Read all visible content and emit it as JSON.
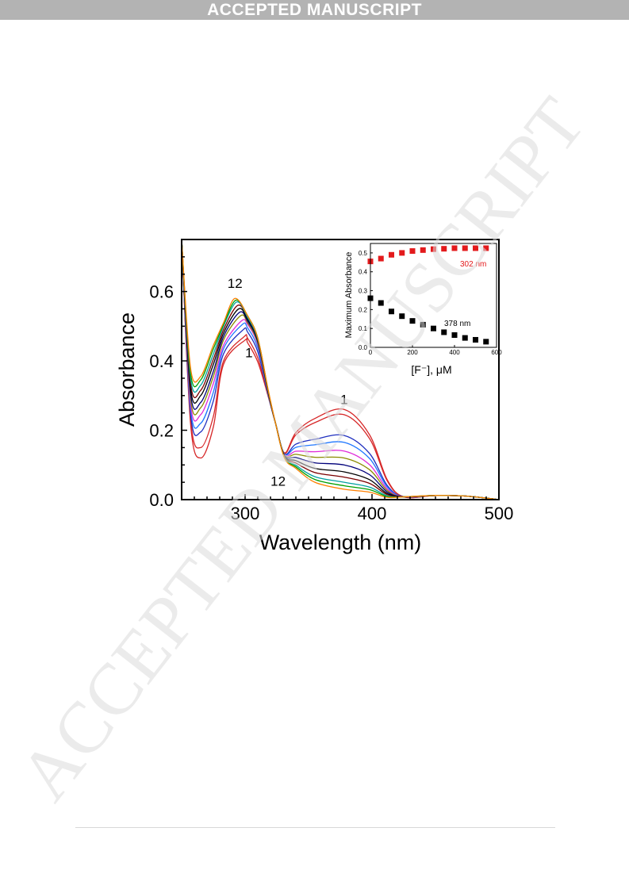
{
  "banner": {
    "text": "ACCEPTED MANUSCRIPT"
  },
  "watermark": {
    "text": "ACCEPTED MANUSCRIPT",
    "color": "#dcdcdc"
  },
  "chart_data": [
    {
      "type": "line",
      "xlabel": "Wavelength (nm)",
      "ylabel": "Absorbance",
      "xlim": [
        250,
        500
      ],
      "ylim": [
        0,
        0.75
      ],
      "xticks": [
        300,
        400,
        500
      ],
      "yticks": [
        0.0,
        0.2,
        0.4,
        0.6
      ],
      "annotations": [
        {
          "text": "12",
          "x": 292,
          "y": 0.61
        },
        {
          "text": "1",
          "x": 303,
          "y": 0.41
        },
        {
          "text": "1",
          "x": 378,
          "y": 0.275
        },
        {
          "text": "12",
          "x": 326,
          "y": 0.04
        }
      ],
      "series": [
        {
          "color": "#d62728",
          "peak300": 0.46,
          "peak378": 0.26,
          "min265": 0.12,
          "x302": 0.452
        },
        {
          "color": "#d62728",
          "peak300": 0.47,
          "peak378": 0.245,
          "min265": 0.15,
          "x302": 0.465
        },
        {
          "color": "#1f2fbf",
          "peak300": 0.49,
          "peak378": 0.185,
          "min265": 0.195,
          "x302": 0.483
        },
        {
          "color": "#1f77ff",
          "peak300": 0.505,
          "peak378": 0.165,
          "min265": 0.22,
          "x302": 0.495
        },
        {
          "color": "#e02ad8",
          "peak300": 0.515,
          "peak378": 0.14,
          "min265": 0.245,
          "x302": 0.505
        },
        {
          "color": "#8b8b00",
          "peak300": 0.53,
          "peak378": 0.12,
          "min265": 0.265,
          "x302": 0.51
        },
        {
          "color": "#00007a",
          "peak300": 0.54,
          "peak378": 0.1,
          "min265": 0.28,
          "x302": 0.515
        },
        {
          "color": "#000000",
          "peak300": 0.55,
          "peak378": 0.08,
          "min265": 0.3,
          "x302": 0.52
        },
        {
          "color": "#7a0000",
          "peak300": 0.56,
          "peak378": 0.065,
          "min265": 0.315,
          "x302": 0.525
        },
        {
          "color": "#00a0a0",
          "peak300": 0.57,
          "peak378": 0.05,
          "min265": 0.33,
          "x302": 0.525
        },
        {
          "color": "#00a000",
          "peak300": 0.575,
          "peak378": 0.04,
          "min265": 0.345,
          "x302": 0.53
        },
        {
          "color": "#ff7f00",
          "peak300": 0.58,
          "peak378": 0.03,
          "min265": 0.355,
          "x302": 0.53
        }
      ]
    },
    {
      "type": "scatter",
      "xlabel": "[F⁻], μM",
      "ylabel": "Maximum Absorbance",
      "xlim": [
        0,
        600
      ],
      "ylim": [
        0,
        0.55
      ],
      "xticks": [
        0,
        200,
        400,
        600
      ],
      "yticks": [
        0.0,
        0.1,
        0.2,
        0.3,
        0.4,
        0.5
      ],
      "series": [
        {
          "name": "302 nm",
          "color": "#e31a1c",
          "x": [
            0,
            50,
            100,
            150,
            200,
            250,
            300,
            350,
            400,
            450,
            500,
            550
          ],
          "y": [
            0.455,
            0.47,
            0.49,
            0.5,
            0.51,
            0.515,
            0.52,
            0.522,
            0.525,
            0.525,
            0.525,
            0.525
          ]
        },
        {
          "name": "378 nm",
          "color": "#000000",
          "x": [
            0,
            50,
            100,
            150,
            200,
            250,
            300,
            350,
            400,
            450,
            500,
            550
          ],
          "y": [
            0.26,
            0.235,
            0.19,
            0.165,
            0.14,
            0.12,
            0.1,
            0.08,
            0.065,
            0.05,
            0.04,
            0.03
          ]
        }
      ]
    }
  ]
}
